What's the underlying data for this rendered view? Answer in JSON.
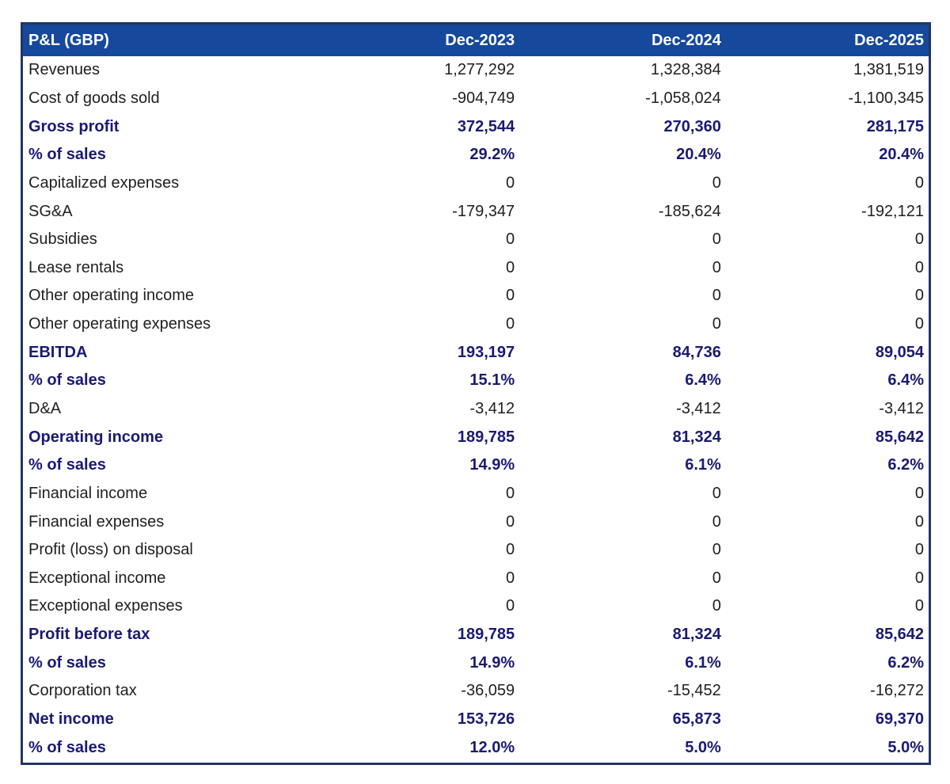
{
  "chart_data": {
    "type": "table",
    "title": "P&L (GBP)",
    "currency": "GBP",
    "columns": [
      "Dec-2023",
      "Dec-2024",
      "Dec-2025"
    ],
    "rows": [
      {
        "label": "Revenues",
        "values": [
          "1,277,292",
          "1,328,384",
          "1,381,519"
        ],
        "emphasis": false
      },
      {
        "label": "Cost of goods sold",
        "values": [
          "-904,749",
          "-1,058,024",
          "-1,100,345"
        ],
        "emphasis": false
      },
      {
        "label": "Gross profit",
        "values": [
          "372,544",
          "270,360",
          "281,175"
        ],
        "emphasis": true
      },
      {
        "label": "% of sales",
        "values": [
          "29.2%",
          "20.4%",
          "20.4%"
        ],
        "emphasis": true
      },
      {
        "label": "Capitalized expenses",
        "values": [
          "0",
          "0",
          "0"
        ],
        "emphasis": false
      },
      {
        "label": "SG&A",
        "values": [
          "-179,347",
          "-185,624",
          "-192,121"
        ],
        "emphasis": false
      },
      {
        "label": "Subsidies",
        "values": [
          "0",
          "0",
          "0"
        ],
        "emphasis": false
      },
      {
        "label": "Lease rentals",
        "values": [
          "0",
          "0",
          "0"
        ],
        "emphasis": false
      },
      {
        "label": "Other operating income",
        "values": [
          "0",
          "0",
          "0"
        ],
        "emphasis": false
      },
      {
        "label": "Other operating expenses",
        "values": [
          "0",
          "0",
          "0"
        ],
        "emphasis": false
      },
      {
        "label": "EBITDA",
        "values": [
          "193,197",
          "84,736",
          "89,054"
        ],
        "emphasis": true
      },
      {
        "label": "% of sales",
        "values": [
          "15.1%",
          "6.4%",
          "6.4%"
        ],
        "emphasis": true
      },
      {
        "label": "D&A",
        "values": [
          "-3,412",
          "-3,412",
          "-3,412"
        ],
        "emphasis": false
      },
      {
        "label": "Operating income",
        "values": [
          "189,785",
          "81,324",
          "85,642"
        ],
        "emphasis": true
      },
      {
        "label": "% of sales",
        "values": [
          "14.9%",
          "6.1%",
          "6.2%"
        ],
        "emphasis": true
      },
      {
        "label": "Financial income",
        "values": [
          "0",
          "0",
          "0"
        ],
        "emphasis": false
      },
      {
        "label": "Financial expenses",
        "values": [
          "0",
          "0",
          "0"
        ],
        "emphasis": false
      },
      {
        "label": "Profit (loss) on disposal",
        "values": [
          "0",
          "0",
          "0"
        ],
        "emphasis": false
      },
      {
        "label": "Exceptional income",
        "values": [
          "0",
          "0",
          "0"
        ],
        "emphasis": false
      },
      {
        "label": "Exceptional expenses",
        "values": [
          "0",
          "0",
          "0"
        ],
        "emphasis": false
      },
      {
        "label": "Profit before tax",
        "values": [
          "189,785",
          "81,324",
          "85,642"
        ],
        "emphasis": true
      },
      {
        "label": "% of sales",
        "values": [
          "14.9%",
          "6.1%",
          "6.2%"
        ],
        "emphasis": true
      },
      {
        "label": "Corporation tax",
        "values": [
          "-36,059",
          "-15,452",
          "-16,272"
        ],
        "emphasis": false
      },
      {
        "label": "Net income",
        "values": [
          "153,726",
          "65,873",
          "69,370"
        ],
        "emphasis": true
      },
      {
        "label": "% of sales",
        "values": [
          "12.0%",
          "5.0%",
          "5.0%"
        ],
        "emphasis": true
      }
    ],
    "layout": {
      "header_bg": "#16489C",
      "header_text": "#FFFFFF",
      "border_color": "#203665",
      "emphasis_text": "#1A1A73",
      "body_text": "#1F1F1F",
      "numeric_alignment": "right"
    }
  }
}
